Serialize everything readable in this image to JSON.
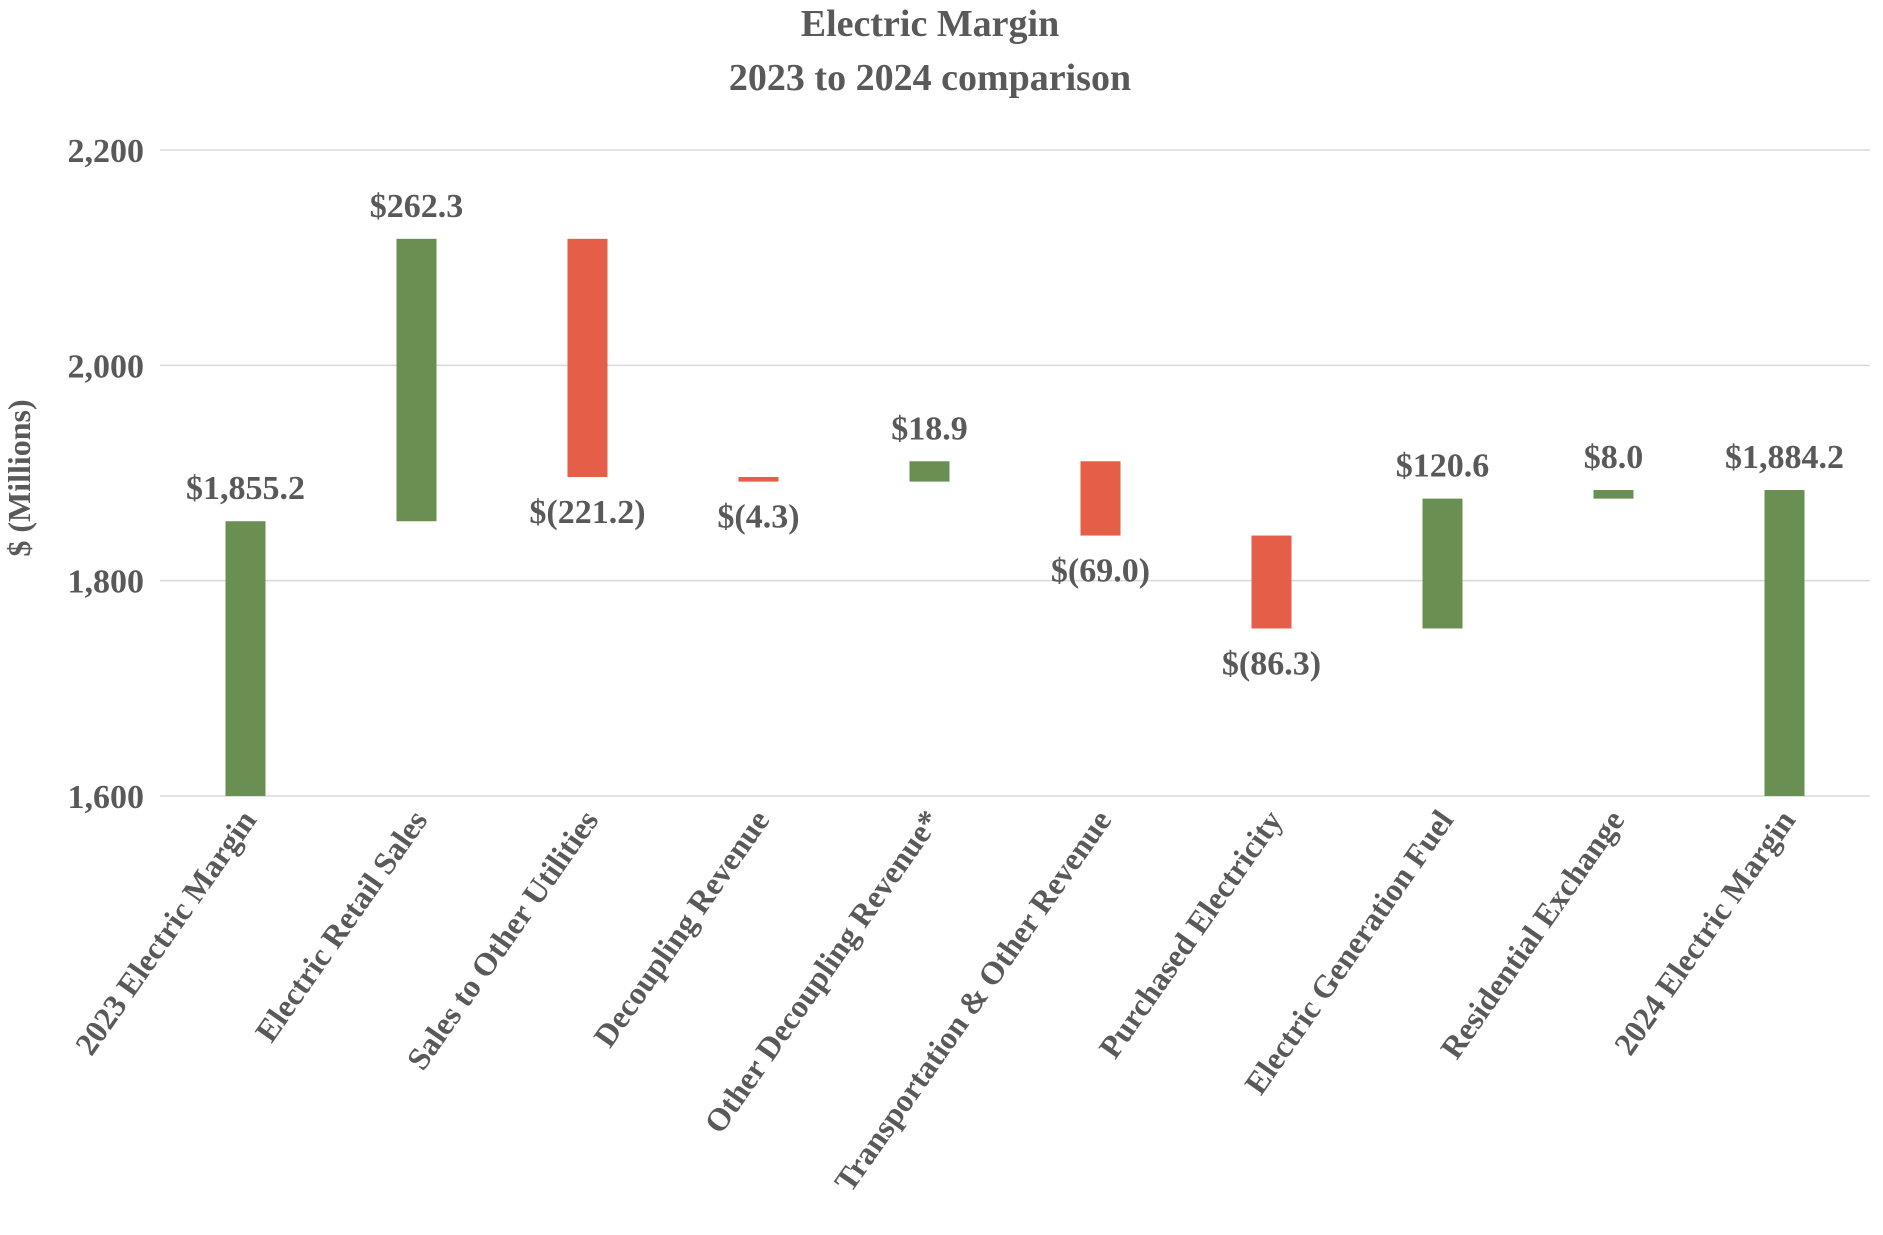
{
  "chart_data": {
    "type": "bar",
    "subtype": "waterfall",
    "title": "Electric Margin",
    "subtitle": "2023 to 2024 comparison",
    "xlabel": "",
    "ylabel": "$ (Millions)",
    "ylim": [
      1600,
      2200
    ],
    "yticks": [
      1600,
      1800,
      2000,
      2200
    ],
    "ytick_labels": [
      "1,600",
      "1,800",
      "2,000",
      "2,200"
    ],
    "grid": true,
    "legend": "none",
    "colors": {
      "increase": "#6a8f53",
      "decrease": "#e55e47",
      "total": "#6a8f53"
    },
    "categories": [
      "2023 Electric Margin",
      "Electric Retail Sales",
      "Sales to Other Utilities",
      "Decoupling Revenue",
      "Other Decoupling Revenue*",
      "Transportation & Other Revenue",
      "Purchased Electricity",
      "Electric Generation Fuel",
      "Residential Exchange",
      "2024 Electric Margin"
    ],
    "values": [
      1855.2,
      262.3,
      -221.2,
      -4.3,
      18.9,
      -69.0,
      -86.3,
      120.6,
      8.0,
      1884.2
    ],
    "bar_types": [
      "total",
      "increase",
      "decrease",
      "decrease",
      "increase",
      "decrease",
      "decrease",
      "increase",
      "increase",
      "total"
    ],
    "data_labels": [
      "$1,855.2",
      "$262.3",
      "$(221.2)",
      "$(4.3)",
      "$18.9",
      "$(69.0)",
      "$(86.3)",
      "$120.6",
      "$8.0",
      "$1,884.2"
    ]
  }
}
